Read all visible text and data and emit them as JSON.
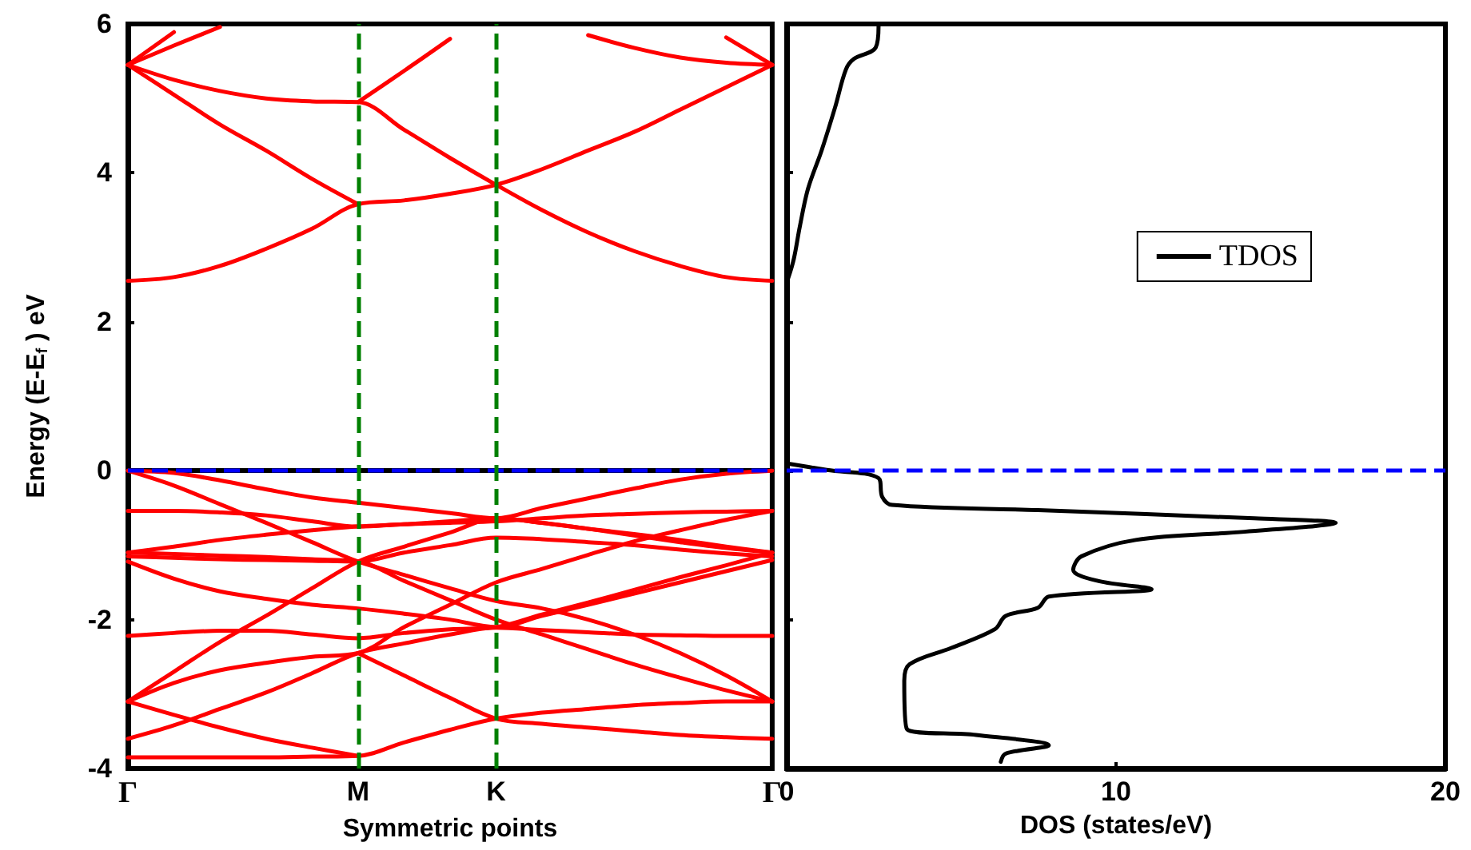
{
  "chart_data": [
    {
      "type": "line",
      "xlabel": "Symmetric points",
      "ylabel": "Energy (E-E$_{f}$ ) eV",
      "categories": [
        "Γ",
        null,
        null,
        null,
        null,
        "M",
        null,
        null,
        "K",
        null,
        null,
        null,
        null,
        null,
        "Γ"
      ],
      "ylim": [
        -4,
        6
      ],
      "yticks": [
        -4,
        -2,
        0,
        2,
        4,
        6
      ],
      "grid": false,
      "legend": false,
      "marker": "none",
      "line_style": "solid",
      "ref_lines": [
        {
          "axis": "y",
          "value": 0,
          "label": null,
          "color": "#0000ff",
          "line_style": "dashed"
        },
        {
          "axis": "x",
          "value": "M",
          "label": null,
          "color": "#008000",
          "line_style": "dashed"
        },
        {
          "axis": "x",
          "value": "K",
          "label": null,
          "color": "#008000",
          "line_style": "dashed"
        }
      ],
      "series": [
        {
          "color": "#ff0000",
          "values": [
            2.55,
            2.6,
            2.75,
            2.98,
            3.25,
            3.58,
            3.63,
            3.72,
            3.84,
            4.05,
            4.3,
            4.55,
            4.85,
            5.15,
            5.45
          ]
        },
        {
          "color": "#ff0000",
          "values": [
            5.45,
            5.05,
            4.65,
            4.3,
            3.92,
            3.58,
            null,
            null,
            null,
            null,
            null,
            null,
            null,
            null,
            null
          ]
        },
        {
          "color": "#ff0000",
          "values": [
            5.45,
            5.25,
            5.1,
            5.0,
            4.96,
            4.95,
            4.58,
            4.2,
            3.84,
            3.5,
            3.2,
            2.95,
            2.75,
            2.6,
            2.55
          ]
        },
        {
          "color": "#ff0000",
          "values": [
            null,
            null,
            null,
            null,
            null,
            4.95,
            5.37,
            5.8,
            null,
            null,
            null,
            null,
            null,
            null,
            null
          ]
        },
        {
          "color": "#ff0000",
          "values": [
            5.45,
            5.89,
            null,
            null,
            null,
            null,
            null,
            null,
            null,
            null,
            null,
            null,
            null,
            null,
            null
          ]
        },
        {
          "color": "#ff0000",
          "values": [
            5.45,
            5.71,
            5.96,
            null,
            null,
            null,
            null,
            null,
            null,
            null,
            null,
            null,
            null,
            null,
            null
          ]
        },
        {
          "color": "#ff0000",
          "values": [
            null,
            null,
            null,
            null,
            null,
            null,
            null,
            null,
            null,
            null,
            null,
            null,
            null,
            5.82,
            5.45
          ]
        },
        {
          "color": "#ff0000",
          "values": [
            null,
            null,
            null,
            null,
            null,
            null,
            null,
            null,
            null,
            null,
            5.85,
            5.68,
            5.55,
            5.48,
            5.45
          ]
        },
        {
          "color": "#ff0000",
          "values": [
            0,
            -0.03,
            -0.13,
            -0.25,
            -0.36,
            -0.43,
            -0.5,
            -0.57,
            -0.64,
            -0.5,
            -0.37,
            -0.24,
            -0.12,
            -0.04,
            0
          ]
        },
        {
          "color": "#ff0000",
          "values": [
            -0.54,
            -0.54,
            -0.56,
            -0.6,
            -0.68,
            -0.75,
            -0.72,
            -0.7,
            -0.68,
            -0.64,
            -0.6,
            -0.58,
            -0.56,
            -0.55,
            -0.54
          ]
        },
        {
          "color": "#ff0000",
          "values": [
            0,
            -0.2,
            -0.45,
            -0.7,
            -0.96,
            -1.22,
            -1.4,
            -1.58,
            -1.75,
            -1.85,
            -2.0,
            -2.2,
            -2.45,
            -2.75,
            -3.1
          ]
        },
        {
          "color": "#ff0000",
          "values": [
            -1.1,
            -1.02,
            -0.93,
            -0.86,
            -0.8,
            -0.75,
            -0.72,
            -0.68,
            -0.64,
            -0.7,
            -0.78,
            -0.87,
            -0.96,
            -1.04,
            -1.1
          ]
        },
        {
          "color": "#ff0000",
          "values": [
            -1.15,
            -1.17,
            -1.19,
            -1.2,
            -1.21,
            -1.22,
            -1.1,
            -1.0,
            -0.9,
            -0.92,
            -0.96,
            -1.0,
            -1.06,
            -1.11,
            -1.15
          ]
        },
        {
          "color": "#ff0000",
          "values": [
            -1.22,
            -1.45,
            -1.62,
            -1.72,
            -1.8,
            -1.85,
            -1.92,
            -2.0,
            -2.1,
            -1.95,
            -1.8,
            -1.65,
            -1.5,
            -1.35,
            -1.2
          ]
        },
        {
          "color": "#ff0000",
          "values": [
            -1.1,
            -1.12,
            -1.14,
            -1.16,
            -1.19,
            -1.22,
            -1.48,
            -1.74,
            -2.0,
            -2.2,
            -2.4,
            -2.6,
            -2.78,
            -2.95,
            -3.1
          ]
        },
        {
          "color": "#ff0000",
          "values": [
            -2.22,
            -2.18,
            -2.15,
            -2.15,
            -2.2,
            -2.25,
            -2.18,
            -2.13,
            -2.1,
            -1.93,
            -1.77,
            -1.6,
            -1.43,
            -1.27,
            -1.1
          ]
        },
        {
          "color": "#ff0000",
          "values": [
            -3.1,
            -2.85,
            -2.68,
            -2.58,
            -2.5,
            -2.45,
            -2.1,
            -1.8,
            -1.5,
            -1.32,
            -1.13,
            -0.95,
            -0.8,
            -0.66,
            -0.54
          ]
        },
        {
          "color": "#ff0000",
          "values": [
            -3.1,
            -2.7,
            -2.3,
            -1.95,
            -1.58,
            -1.22,
            -1.02,
            -0.83,
            -0.64,
            -0.7,
            -0.78,
            -0.85,
            -0.93,
            -1.02,
            -1.1
          ]
        },
        {
          "color": "#ff0000",
          "values": [
            -3.6,
            -3.42,
            -3.2,
            -2.98,
            -2.72,
            -2.45,
            -2.32,
            -2.2,
            -2.11,
            -2.14,
            -2.17,
            -2.2,
            -2.21,
            -2.22,
            -2.22
          ]
        },
        {
          "color": "#ff0000",
          "values": [
            -3.85,
            -3.85,
            -3.85,
            -3.85,
            -3.84,
            -3.83,
            -3.65,
            -3.48,
            -3.33,
            -3.25,
            -3.2,
            -3.15,
            -3.12,
            -3.1,
            -3.1
          ]
        },
        {
          "color": "#ff0000",
          "values": [
            -3.1,
            -3.28,
            -3.45,
            -3.6,
            -3.72,
            -3.83,
            null,
            null,
            null,
            null,
            null,
            null,
            null,
            null,
            null
          ]
        },
        {
          "color": "#ff0000",
          "values": [
            null,
            null,
            null,
            null,
            null,
            -2.45,
            -2.75,
            -3.05,
            -3.33,
            -3.4,
            -3.45,
            -3.5,
            -3.55,
            -3.58,
            -3.6
          ]
        }
      ]
    },
    {
      "type": "line",
      "xlabel": "DOS (states/eV)",
      "xlim": [
        0,
        20
      ],
      "xticks": [
        0,
        10,
        20
      ],
      "ylim": [
        -4,
        6
      ],
      "tick_labels": "x",
      "grid": false,
      "legend": "right",
      "marker": "none",
      "line_style": "solid",
      "ref_lines": [
        {
          "axis": "y",
          "value": 0,
          "label": null,
          "color": "#0000ff",
          "line_style": "dashed"
        }
      ],
      "series": [
        {
          "name": "TDOS",
          "color": "#000000",
          "x": [
            2.79,
            2.7,
            2.04,
            1.8,
            1.47,
            1.06,
            0.65,
            0.4,
            0.22,
            0.05,
            0,
            0,
            0.1,
            1.22,
            2.79,
            2.9,
            3.2,
            7.63,
            14.2,
            16.67,
            13.9,
            10.6,
            8.95,
            8.7,
            9.45,
            11.08,
            7.96,
            7.63,
            6.65,
            6.32,
            5.0,
            3.73,
            3.57,
            3.65,
            5.75,
            7.96,
            6.65,
            6.5
          ],
          "values": [
            5.97,
            5.68,
            5.53,
            5.39,
            4.88,
            4.3,
            3.79,
            3.28,
            2.85,
            2.59,
            2.55,
            0.1,
            0.09,
            0.01,
            -0.1,
            -0.35,
            -0.46,
            -0.53,
            -0.64,
            -0.7,
            -0.82,
            -0.93,
            -1.15,
            -1.33,
            -1.48,
            -1.59,
            -1.69,
            -1.84,
            -1.95,
            -2.13,
            -2.38,
            -2.6,
            -2.82,
            -3.47,
            -3.55,
            -3.69,
            -3.8,
            -3.91
          ]
        }
      ]
    }
  ]
}
